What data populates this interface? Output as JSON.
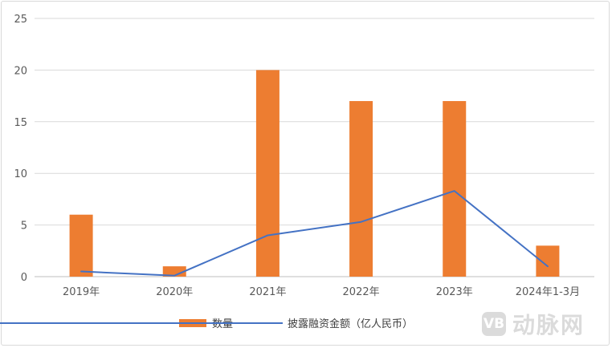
{
  "chart_data": {
    "type": "bar",
    "categories": [
      "2019年",
      "2020年",
      "2021年",
      "2022年",
      "2023年",
      "2024年1-3月"
    ],
    "series": [
      {
        "name": "数量",
        "type": "bar",
        "values": [
          6,
          1,
          20,
          17,
          17,
          3
        ],
        "color": "#ED7D31"
      },
      {
        "name": "披露融资金额（亿人民币）",
        "type": "line",
        "values": [
          0.5,
          0.1,
          4.0,
          5.3,
          8.3,
          1.0
        ],
        "color": "#4472C4"
      }
    ],
    "yticks": [
      "0",
      "5",
      "10",
      "15",
      "20",
      "25"
    ],
    "ylim": [
      0,
      25
    ],
    "grid": true,
    "legend": "bottom-center"
  },
  "watermark": {
    "badge": "VB",
    "text": "动脉网"
  }
}
